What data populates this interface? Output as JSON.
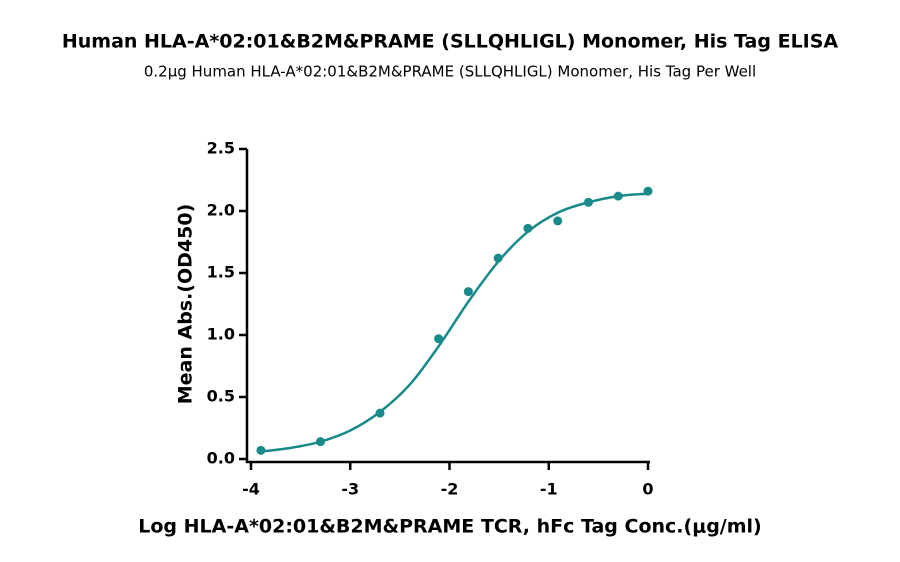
{
  "chart_data": {
    "type": "scatter",
    "title": "Human HLA-A*02:01&B2M&PRAME (SLLQHLIGL) Monomer, His Tag ELISA",
    "subtitle": "0.2μg Human HLA-A*02:01&B2M&PRAME (SLLQHLIGL) Monomer, His Tag Per Well",
    "x_label": "Log HLA-A*02:01&B2M&PRAME TCR, hFc Tag Conc.(μg/ml)",
    "y_label": "Mean Abs.(OD450)",
    "color": "#178a89",
    "x": [
      -3.9,
      -3.3,
      -2.7,
      -2.11,
      -1.81,
      -1.51,
      -1.21,
      -0.91,
      -0.6,
      -0.3,
      0
    ],
    "values": [
      0.07,
      0.14,
      0.37,
      0.97,
      1.35,
      1.62,
      1.86,
      1.92,
      2.07,
      2.12,
      2.16
    ],
    "fit": {
      "x": [
        -3.9,
        -3.6,
        -3.3,
        -3.0,
        -2.7,
        -2.4,
        -2.1,
        -1.8,
        -1.5,
        -1.2,
        -0.9,
        -0.6,
        -0.3,
        0
      ],
      "values": [
        0.06,
        0.09,
        0.14,
        0.23,
        0.38,
        0.6,
        0.92,
        1.28,
        1.6,
        1.84,
        1.99,
        2.07,
        2.12,
        2.14
      ]
    },
    "xlim": [
      -4,
      0
    ],
    "xticks": [
      -4,
      -3,
      -2,
      -1,
      0
    ],
    "ylim": [
      0,
      2.5
    ],
    "yticks": [
      {
        "value": 0,
        "label": "0.0"
      },
      0.5,
      {
        "value": 1,
        "label": "1.0"
      },
      1.5,
      {
        "value": 2,
        "label": "2.0"
      },
      2.5
    ]
  }
}
